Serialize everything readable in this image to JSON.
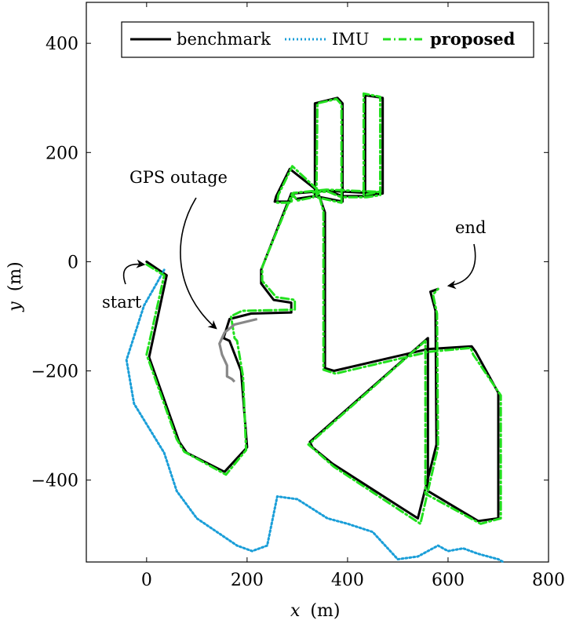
{
  "chart_data": {
    "type": "line",
    "xlabel_var": "x",
    "xlabel_unit": "(m)",
    "ylabel_var": "y",
    "ylabel_unit": "(m)",
    "xlim": [
      -120,
      800
    ],
    "ylim": [
      -550,
      475
    ],
    "xticks": [
      0,
      200,
      400,
      600,
      800
    ],
    "xtick_labels": [
      "0",
      "200",
      "400",
      "600",
      "800"
    ],
    "yticks": [
      400,
      200,
      0,
      -200,
      -400
    ],
    "ytick_labels": [
      "400",
      "200",
      "0",
      "−200",
      "−400"
    ],
    "grid": false,
    "legend_placement": "top-right",
    "legend": [
      "benchmark",
      "IMU",
      "proposed"
    ],
    "colors": {
      "benchmark": "#000000",
      "IMU": "#1a9ed8",
      "proposed": "#22e01e",
      "gps_outage": "#888888"
    },
    "series": [
      {
        "name": "benchmark",
        "style": "solid",
        "x": [
          0,
          40,
          5,
          65,
          80,
          155,
          200,
          188,
          165,
          153,
          165,
          208,
          288,
          288,
          253,
          228,
          228,
          288,
          298,
          335,
          335,
          360,
          390,
          390,
          335,
          335,
          380,
          390,
          390,
          435,
          470,
          470,
          435,
          435,
          460,
          360,
          290,
          285,
          255,
          258,
          285,
          340,
          355,
          355,
          373,
          560,
          647,
          655,
          700,
          700,
          660,
          560,
          560,
          325,
          330,
          370,
          540,
          577,
          575,
          565,
          580
        ],
        "y": [
          0,
          -25,
          -175,
          -330,
          -350,
          -385,
          -340,
          -200,
          -145,
          -140,
          -105,
          -95,
          -93,
          -75,
          -70,
          -40,
          -15,
          125,
          115,
          120,
          130,
          130,
          120,
          110,
          120,
          290,
          300,
          290,
          120,
          120,
          125,
          300,
          305,
          125,
          125,
          130,
          125,
          110,
          110,
          120,
          170,
          130,
          90,
          -195,
          -200,
          -160,
          -155,
          -165,
          -240,
          -470,
          -475,
          -420,
          -140,
          -330,
          -340,
          -370,
          -470,
          -335,
          -90,
          -55,
          -50
        ]
      },
      {
        "name": "IMU",
        "style": "dotted",
        "x": [
          35,
          20,
          -5,
          -40,
          -25,
          35,
          60,
          100,
          180,
          210,
          240,
          260,
          300,
          360,
          400,
          450,
          500,
          540,
          580,
          600,
          630,
          660,
          700,
          710
        ],
        "y": [
          -15,
          -40,
          -80,
          -180,
          -260,
          -350,
          -420,
          -470,
          -520,
          -530,
          -520,
          -430,
          -435,
          -470,
          -480,
          -495,
          -545,
          -540,
          -520,
          -530,
          -525,
          -535,
          -545,
          -550
        ]
      },
      {
        "name": "proposed",
        "style": "dashdot",
        "x": [
          0,
          35,
          0,
          60,
          75,
          158,
          198,
          192,
          180,
          175,
          168,
          190,
          295,
          295,
          258,
          230,
          230,
          290,
          300,
          332,
          332,
          362,
          388,
          388,
          338,
          340,
          378,
          388,
          388,
          438,
          465,
          465,
          432,
          432,
          462,
          358,
          292,
          288,
          260,
          262,
          290,
          340,
          352,
          352,
          376,
          562,
          645,
          650,
          705,
          705,
          665,
          555,
          555,
          322,
          335,
          372,
          545,
          580,
          578,
          570,
          580
        ],
        "y": [
          -5,
          -25,
          -170,
          -325,
          -348,
          -390,
          -345,
          -210,
          -145,
          -140,
          -100,
          -90,
          -88,
          -70,
          -65,
          -35,
          -10,
          125,
          112,
          118,
          128,
          128,
          118,
          108,
          118,
          290,
          298,
          288,
          118,
          118,
          122,
          302,
          308,
          122,
          128,
          132,
          126,
          108,
          108,
          122,
          175,
          132,
          92,
          -198,
          -205,
          -165,
          -158,
          -170,
          -245,
          -470,
          -480,
          -425,
          -145,
          -335,
          -345,
          -375,
          -480,
          -340,
          -95,
          -60,
          -50
        ]
      }
    ],
    "gps_outage_path": {
      "x": [
        220,
        175,
        155,
        145,
        150,
        160,
        160,
        170,
        175
      ],
      "y": [
        -105,
        -115,
        -130,
        -150,
        -170,
        -190,
        -210,
        -215,
        -220
      ]
    },
    "annotations": {
      "gps_outage": "GPS outage",
      "start": "start",
      "end": "end"
    }
  }
}
